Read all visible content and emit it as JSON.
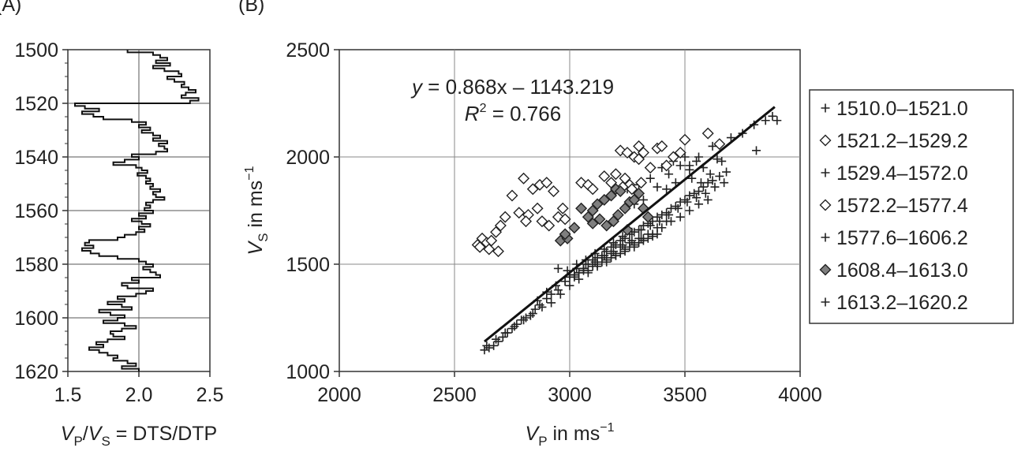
{
  "panel_labels": {
    "a": "(A)",
    "b": "(B)"
  },
  "chart_data": [
    {
      "type": "line",
      "panel": "(A)",
      "xlabel": "V_P/V_S = DTS/DTP",
      "xlabel_parts": {
        "v1": "V",
        "s1": "P",
        "slash": "/",
        "v2": "V",
        "s2": "S",
        "rest": " = DTS/DTP"
      },
      "ylabel": "",
      "xlim": [
        1.5,
        2.5
      ],
      "ylim": [
        1620,
        1500
      ],
      "x_ticks": [
        "1.5",
        "2.0",
        "2.5"
      ],
      "y_ticks": [
        "1500",
        "1520",
        "1540",
        "1560",
        "1580",
        "1600",
        "1620"
      ],
      "grid": true,
      "series": [
        {
          "depth": [
            1500,
            1501,
            1502,
            1503,
            1504,
            1505,
            1506,
            1507,
            1508,
            1509,
            1510,
            1511,
            1512,
            1513,
            1514,
            1515,
            1516,
            1517,
            1518,
            1519,
            1520,
            1521,
            1522,
            1523,
            1524,
            1525,
            1526,
            1527,
            1528,
            1529,
            1530,
            1531,
            1532,
            1533,
            1534,
            1535,
            1536,
            1537,
            1538,
            1539,
            1540,
            1541,
            1542,
            1543,
            1544,
            1545,
            1546,
            1547,
            1548,
            1549,
            1550,
            1551,
            1552,
            1553,
            1554,
            1555,
            1556,
            1557,
            1558,
            1559,
            1560,
            1561,
            1562,
            1563,
            1564,
            1565,
            1566,
            1567,
            1568,
            1569,
            1570,
            1571,
            1572,
            1573,
            1574,
            1575,
            1576,
            1577,
            1578,
            1579,
            1580,
            1581,
            1582,
            1583,
            1584,
            1585,
            1586,
            1587,
            1588,
            1589,
            1590,
            1591,
            1592,
            1593,
            1594,
            1595,
            1596,
            1597,
            1598,
            1599,
            1600,
            1601,
            1602,
            1603,
            1604,
            1605,
            1606,
            1607,
            1608,
            1609,
            1610,
            1611,
            1612,
            1613,
            1614,
            1615,
            1616,
            1617,
            1618,
            1619
          ],
          "values": [
            1.92,
            2.1,
            2.15,
            2.2,
            2.12,
            2.22,
            2.1,
            2.18,
            2.28,
            2.3,
            2.2,
            2.25,
            2.32,
            2.3,
            2.35,
            2.4,
            2.33,
            2.3,
            2.42,
            2.36,
            1.55,
            1.62,
            1.72,
            1.6,
            1.68,
            1.75,
            1.95,
            2.05,
            2.0,
            2.08,
            2.02,
            2.1,
            2.15,
            2.1,
            2.2,
            2.14,
            2.18,
            2.2,
            2.12,
            1.95,
            2.0,
            1.9,
            1.82,
            1.98,
            2.02,
            2.06,
            1.99,
            2.05,
            2.08,
            2.05,
            2.1,
            2.08,
            2.15,
            2.1,
            2.12,
            2.18,
            2.1,
            2.05,
            2.08,
            2.04,
            2.1,
            2.0,
            2.05,
            1.95,
            2.02,
            2.08,
            2.0,
            2.04,
            1.98,
            1.9,
            1.85,
            1.65,
            1.62,
            1.68,
            1.6,
            1.66,
            1.72,
            1.85,
            2.0,
            2.05,
            2.1,
            2.03,
            2.08,
            2.12,
            2.15,
            1.95,
            2.0,
            1.88,
            1.92,
            2.1,
            2.05,
            1.98,
            1.85,
            1.9,
            1.78,
            1.88,
            1.95,
            1.72,
            1.8,
            1.9,
            1.85,
            1.75,
            1.9,
            1.98,
            1.88,
            1.8,
            1.82,
            1.9,
            1.78,
            1.7,
            1.75,
            1.65,
            1.72,
            1.78,
            1.85,
            1.82,
            1.92,
            1.98,
            1.88,
            2.0
          ]
        }
      ]
    },
    {
      "type": "scatter",
      "panel": "(B)",
      "xlabel": "V_P in ms^-1",
      "xlabel_parts": {
        "v": "V",
        "sub": "P",
        "rest": " in ms",
        "sup": "−1"
      },
      "ylabel": "V_S in ms^-1",
      "ylabel_parts": {
        "v": "V",
        "sub": "S",
        "rest": " in ms",
        "sup": "−1"
      },
      "xlim": [
        2000,
        4000
      ],
      "ylim": [
        1000,
        2500
      ],
      "x_ticks": [
        "2000",
        "2500",
        "3000",
        "3500",
        "4000"
      ],
      "y_ticks": [
        "1000",
        "1500",
        "2000",
        "2500"
      ],
      "grid": true,
      "legend_position": "right",
      "trendline": {
        "slope": 0.868,
        "intercept": -1143.219,
        "x_range": [
          2630,
          3890
        ],
        "equation_parts": {
          "y": "y",
          "rest": " = 0.868x – 1143.219"
        },
        "r2_parts": {
          "r": "R",
          "sup": "2",
          "rest": " = 0.766"
        }
      },
      "series": [
        {
          "name": "1510.0–1521.0",
          "marker": "plus",
          "color": "#222222",
          "x": [
            3620,
            3700,
            3750,
            3800,
            3850,
            3880,
            3900,
            3810,
            3660,
            3560,
            3520
          ],
          "y": [
            2050,
            2090,
            2110,
            2150,
            2170,
            2190,
            2170,
            2030,
            1980,
            2000,
            1960
          ]
        },
        {
          "name": "1521.2–1529.2",
          "marker": "diamond-open",
          "color": "#222222",
          "x": [
            2600,
            2620,
            2640,
            2610,
            2660,
            2680,
            2700,
            2720,
            2650,
            2690,
            2750,
            2800,
            2840,
            2870,
            2900,
            2820,
            2860,
            2930,
            2780,
            2810,
            2880,
            2910,
            2950,
            2980,
            2970
          ],
          "y": [
            1590,
            1620,
            1600,
            1580,
            1610,
            1650,
            1680,
            1720,
            1570,
            1560,
            1820,
            1900,
            1850,
            1870,
            1880,
            1730,
            1760,
            1840,
            1740,
            1700,
            1700,
            1680,
            1720,
            1710,
            1760
          ]
        },
        {
          "name": "1529.4–1572.0",
          "marker": "plus",
          "color": "#222222",
          "x": [
            3400,
            3450,
            3500,
            3550,
            3300,
            3250,
            3350,
            3430,
            3480,
            3520,
            3380,
            3320,
            3280,
            3420,
            3460,
            3530,
            3580,
            3610,
            3640,
            3570
          ],
          "y": [
            1950,
            1980,
            2000,
            1980,
            1870,
            1850,
            1900,
            1920,
            1960,
            1940,
            1860,
            1800,
            1780,
            1850,
            1880,
            1900,
            1950,
            1920,
            1990,
            1880
          ]
        },
        {
          "name": "1572.2–1577.4",
          "marker": "diamond-open",
          "color": "#222222",
          "x": [
            3050,
            3080,
            3100,
            3150,
            3180,
            3200,
            3220,
            3250,
            3280,
            3300,
            3350,
            3380,
            3400,
            3420,
            3450,
            3480,
            3500,
            3600,
            3650,
            3300,
            3320,
            3240,
            3260,
            3230,
            3270,
            3310
          ],
          "y": [
            1880,
            1870,
            1850,
            1910,
            1880,
            1920,
            2030,
            2020,
            2000,
            1990,
            1950,
            2040,
            2050,
            1960,
            2000,
            2020,
            2080,
            2110,
            2060,
            2050,
            2020,
            1900,
            1870,
            1860,
            1850,
            1880
          ]
        },
        {
          "name": "1577.6–1606.2",
          "marker": "plus",
          "color": "#222222",
          "x": [
            2630,
            2650,
            2670,
            2690,
            2710,
            2730,
            2750,
            2770,
            2790,
            2810,
            2830,
            2850,
            2870,
            2900,
            2920,
            2950,
            2980,
            3000,
            3020,
            3040,
            3060,
            3080,
            3100,
            3120,
            3140,
            3160,
            3180,
            3200,
            3220,
            3240,
            3260,
            3280,
            3300,
            3320,
            3340,
            3360,
            3380,
            3400,
            3420,
            3440,
            3460,
            3480,
            3500,
            3520,
            3540,
            3560,
            3580,
            3600,
            3620,
            3650,
            3680,
            2640,
            2680,
            2720,
            2760,
            2800,
            2840,
            2880,
            2920,
            2960,
            3000,
            3040,
            3080,
            3120,
            3160,
            3200,
            3240,
            3280,
            3320,
            3360,
            3400,
            3440,
            3480,
            3520,
            3560,
            3600,
            2950,
            2990,
            3030,
            3070,
            3110,
            3150,
            3190,
            3230,
            3270,
            3310,
            3350,
            3390,
            3430,
            3470,
            3510,
            3550,
            3590,
            3630,
            3670,
            2860,
            2900,
            2940,
            2980,
            3020,
            3060,
            3100,
            3140,
            3180,
            3220,
            3260,
            3300,
            3340,
            3380,
            3420
          ],
          "y": [
            1100,
            1110,
            1120,
            1140,
            1160,
            1180,
            1200,
            1220,
            1240,
            1250,
            1260,
            1290,
            1310,
            1340,
            1360,
            1380,
            1420,
            1440,
            1450,
            1460,
            1480,
            1500,
            1520,
            1530,
            1540,
            1560,
            1580,
            1590,
            1610,
            1620,
            1640,
            1650,
            1660,
            1680,
            1690,
            1700,
            1720,
            1730,
            1740,
            1760,
            1770,
            1790,
            1800,
            1820,
            1830,
            1840,
            1860,
            1880,
            1890,
            1910,
            1930,
            1120,
            1150,
            1180,
            1210,
            1240,
            1270,
            1300,
            1320,
            1360,
            1400,
            1430,
            1460,
            1490,
            1510,
            1540,
            1570,
            1590,
            1620,
            1640,
            1670,
            1700,
            1720,
            1750,
            1780,
            1800,
            1480,
            1470,
            1500,
            1520,
            1550,
            1570,
            1600,
            1630,
            1650,
            1660,
            1680,
            1700,
            1730,
            1760,
            1790,
            1810,
            1830,
            1860,
            1880,
            1330,
            1370,
            1400,
            1420,
            1450,
            1480,
            1500,
            1530,
            1550,
            1580,
            1600,
            1620,
            1640,
            1670,
            1700
          ]
        },
        {
          "name": "1608.4–1613.0",
          "marker": "diamond-filled",
          "color": "#7f7f7f",
          "x": [
            2960,
            2990,
            3050,
            3080,
            3100,
            3120,
            3150,
            3180,
            3200,
            3220,
            3240,
            3260,
            3280,
            3300,
            3320,
            3340,
            3160,
            3190,
            3210,
            3250,
            3100,
            3130,
            2980,
            3020
          ],
          "y": [
            1610,
            1620,
            1760,
            1720,
            1750,
            1780,
            1800,
            1820,
            1850,
            1840,
            1760,
            1790,
            1800,
            1830,
            1760,
            1720,
            1680,
            1700,
            1730,
            1660,
            1690,
            1710,
            1640,
            1670
          ]
        },
        {
          "name": "1613.2–1620.2",
          "marker": "plus",
          "color": "#222222",
          "x": [
            3000,
            3040,
            3080,
            3120,
            3160,
            3200,
            3240,
            3280,
            3320,
            3360,
            3020,
            3060,
            3100,
            3140,
            3180,
            3220,
            3260,
            3300,
            3340,
            3380,
            3030,
            3070,
            3110,
            3150,
            3190,
            3230,
            3270,
            3310
          ],
          "y": [
            1450,
            1460,
            1470,
            1500,
            1520,
            1540,
            1560,
            1580,
            1610,
            1630,
            1440,
            1470,
            1490,
            1510,
            1530,
            1550,
            1580,
            1600,
            1620,
            1640,
            1480,
            1500,
            1510,
            1540,
            1560,
            1590,
            1610,
            1620
          ]
        }
      ]
    }
  ]
}
